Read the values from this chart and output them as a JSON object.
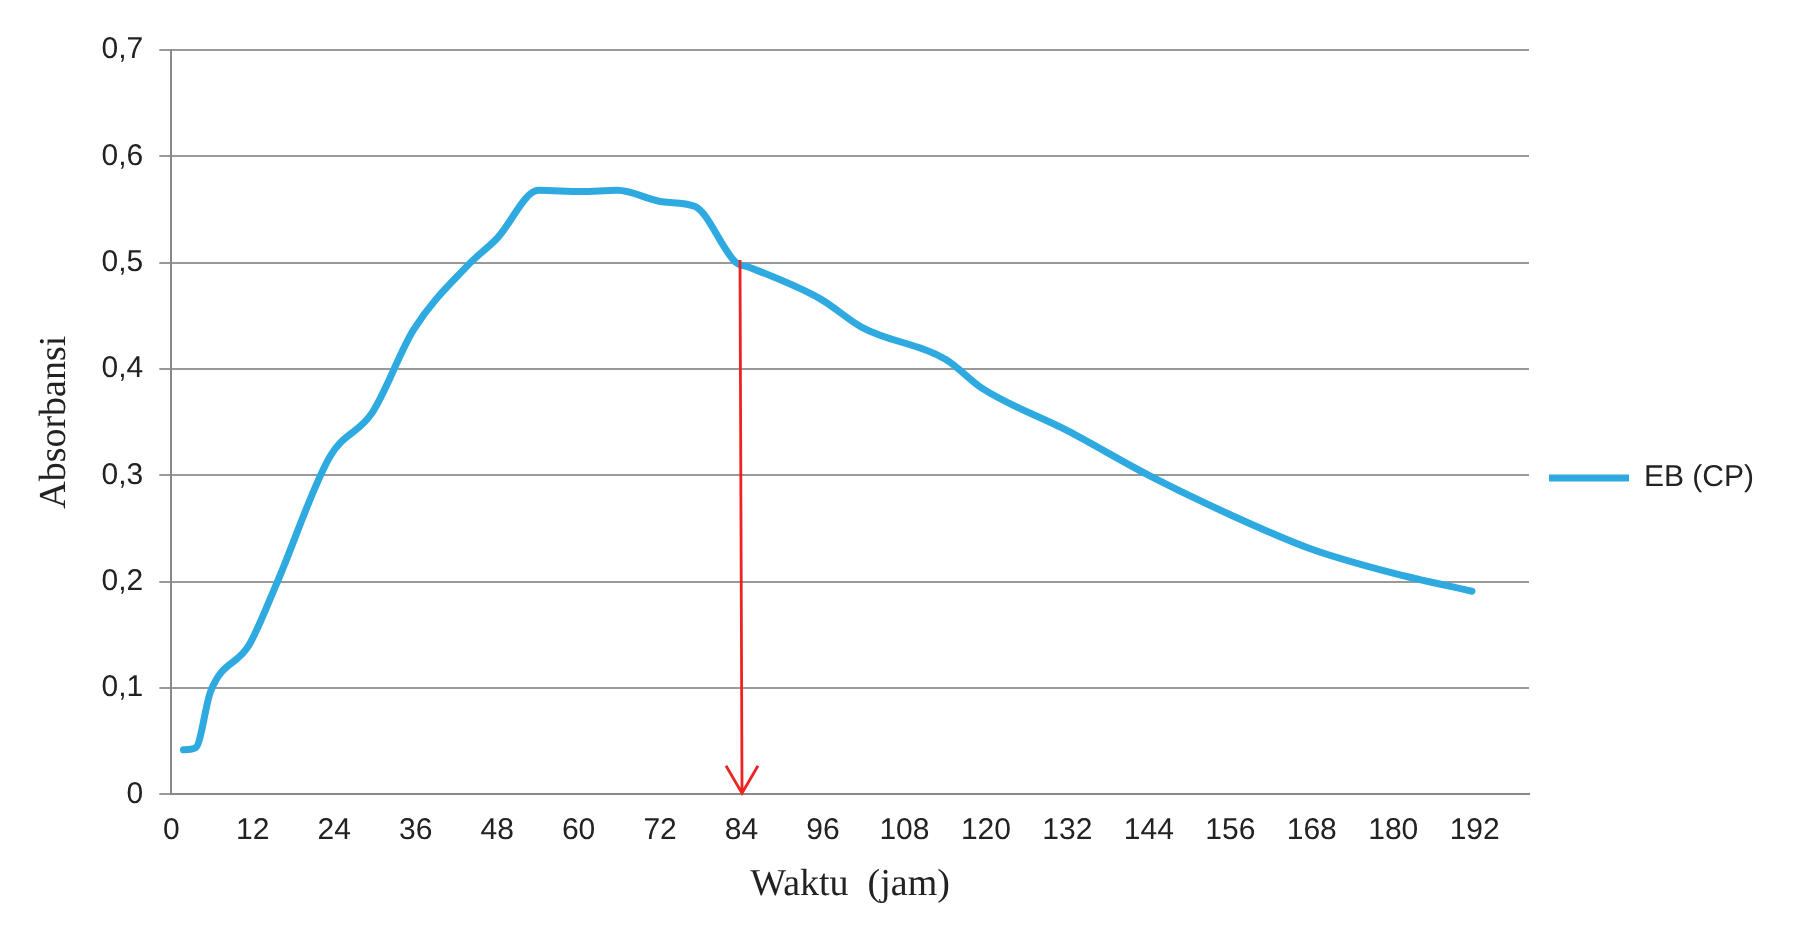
{
  "chart_data": {
    "type": "line",
    "xlabel": "Waktu  (jam)",
    "ylabel": "Absorbansi",
    "series": [
      {
        "name": "EB (CP)",
        "color": "#2eaae1",
        "x": [
          1.8,
          3.6,
          5.8,
          11.5,
          15.5,
          23.4,
          29.6,
          35.7,
          43.6,
          48,
          54.1,
          60.4,
          65.7,
          72.6,
          77.1,
          83.2,
          85,
          95.6,
          101.8,
          114.1,
          119.4,
          132,
          144,
          156,
          167.8,
          180,
          191.6
        ],
        "values": [
          0.042,
          0.044,
          0.097,
          0.141,
          0.198,
          0.318,
          0.359,
          0.437,
          0.497,
          0.523,
          0.568,
          0.567,
          0.568,
          0.557,
          0.553,
          0.5,
          0.496,
          0.466,
          0.439,
          0.409,
          0.382,
          0.342,
          0.3,
          0.263,
          0.231,
          0.208,
          0.191
        ]
      }
    ],
    "xlim": [
      0,
      200
    ],
    "xticks": [
      0,
      12,
      24,
      36,
      48,
      60,
      72,
      84,
      96,
      108,
      120,
      132,
      144,
      156,
      168,
      180,
      192
    ],
    "ylim": [
      0,
      0.7
    ],
    "yticks": [
      0,
      {
        "value": 0.1,
        "label": "0,1"
      },
      {
        "value": 0.2,
        "label": "0,2"
      },
      {
        "value": 0.3,
        "label": "0,3"
      },
      {
        "value": 0.4,
        "label": "0,4"
      },
      {
        "value": 0.5,
        "label": "0,5"
      },
      {
        "value": 0.6,
        "label": "0,6"
      },
      {
        "value": 0.7,
        "label": "0,7"
      }
    ],
    "grid": "y",
    "legend": "right",
    "marker": "none",
    "line_style": "solid"
  }
}
